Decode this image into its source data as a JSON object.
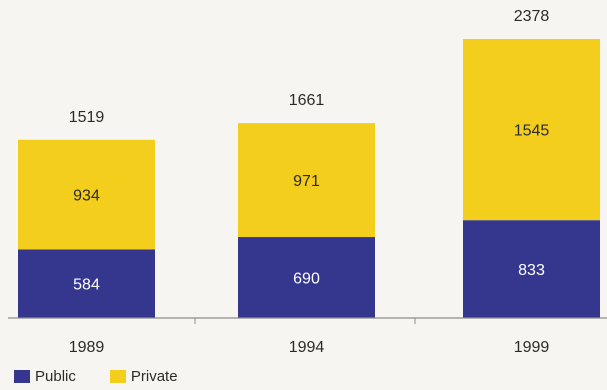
{
  "chart_data": {
    "type": "bar",
    "stacked": true,
    "categories": [
      "1989",
      "1994",
      "1999"
    ],
    "series": [
      {
        "name": "Public",
        "values": [
          584,
          690,
          833
        ],
        "color": "#35378f"
      },
      {
        "name": "Private",
        "values": [
          934,
          971,
          1545
        ],
        "color": "#f4ce1d"
      }
    ],
    "totals": [
      1519,
      1661,
      2378
    ],
    "title": "",
    "xlabel": "",
    "ylabel": "",
    "ylim": [
      0,
      2378
    ],
    "grid": false,
    "legend_position": "bottom-left",
    "colors": {
      "public": "#35378f",
      "private": "#f4ce1d",
      "label_on_dark": "#ffffff",
      "label_on_light": "#2b2b2b",
      "axis": "#8c8c8c",
      "background": "#f7f5f1"
    }
  }
}
